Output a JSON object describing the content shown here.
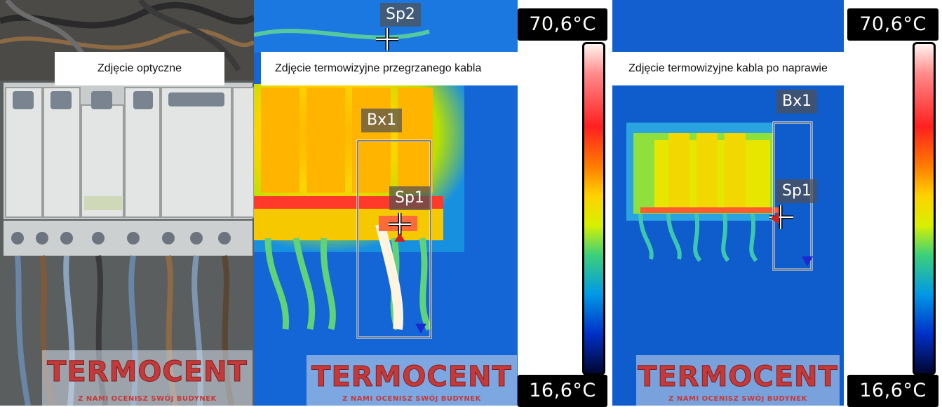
{
  "captions": {
    "optical": "Zdjęcie optyczne",
    "thermal_overheated": "Zdjęcie termowizyjne przegrzanego kabla",
    "thermal_repaired": "Zdjęcie termowizyjne kabla po naprawie"
  },
  "scales": [
    {
      "max": "70,6°C",
      "min": "16,6°C"
    },
    {
      "max": "70,6°C",
      "min": "16,6°C"
    }
  ],
  "markers": {
    "overheated": {
      "spot2": "Sp2",
      "box": "Bx1",
      "spot1": "Sp1"
    },
    "repaired": {
      "box": "Bx1",
      "spot1": "Sp1"
    }
  },
  "logo": {
    "brand": "TERMOCENT",
    "slogan": "Z NAMI OCENISZ SWÓJ BUDYNEK"
  },
  "colors": {
    "scale_top": "#fff3ef",
    "scale_hot": "#ff2020",
    "scale_warm": "#ffd200",
    "scale_cool": "#0099e6",
    "scale_bottom": "#000630",
    "logo_red": "#c23a3a"
  }
}
